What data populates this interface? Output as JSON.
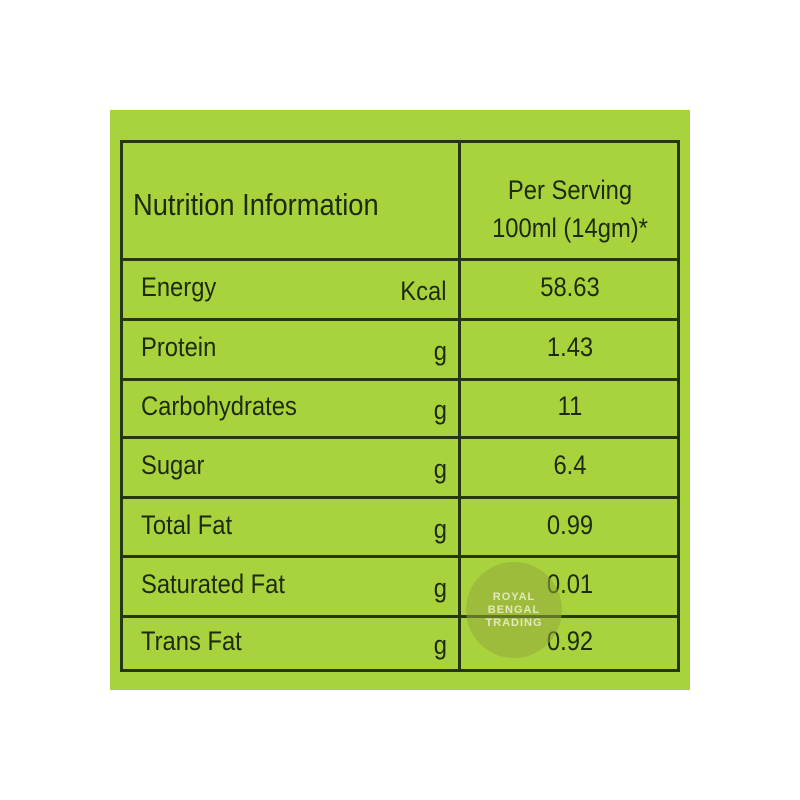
{
  "header": {
    "title": "Nutrition Information",
    "serving": [
      "Per Serving",
      "100ml (14gm)*"
    ]
  },
  "rows": [
    {
      "name": "Energy",
      "unit": "Kcal",
      "value": "58.63"
    },
    {
      "name": "Protein",
      "unit": "g",
      "value": "1.43"
    },
    {
      "name": "Carbohydrates",
      "unit": "g",
      "value": "11"
    },
    {
      "name": "Sugar",
      "unit": "g",
      "value": "6.4"
    },
    {
      "name": "Total Fat",
      "unit": "g",
      "value": "0.99"
    },
    {
      "name": "Saturated Fat",
      "unit": "g",
      "value": "0.01"
    },
    {
      "name": "Trans Fat",
      "unit": "g",
      "value": "0.92"
    }
  ],
  "watermark": [
    "ROYAL",
    "BENGAL",
    "TRADING"
  ]
}
